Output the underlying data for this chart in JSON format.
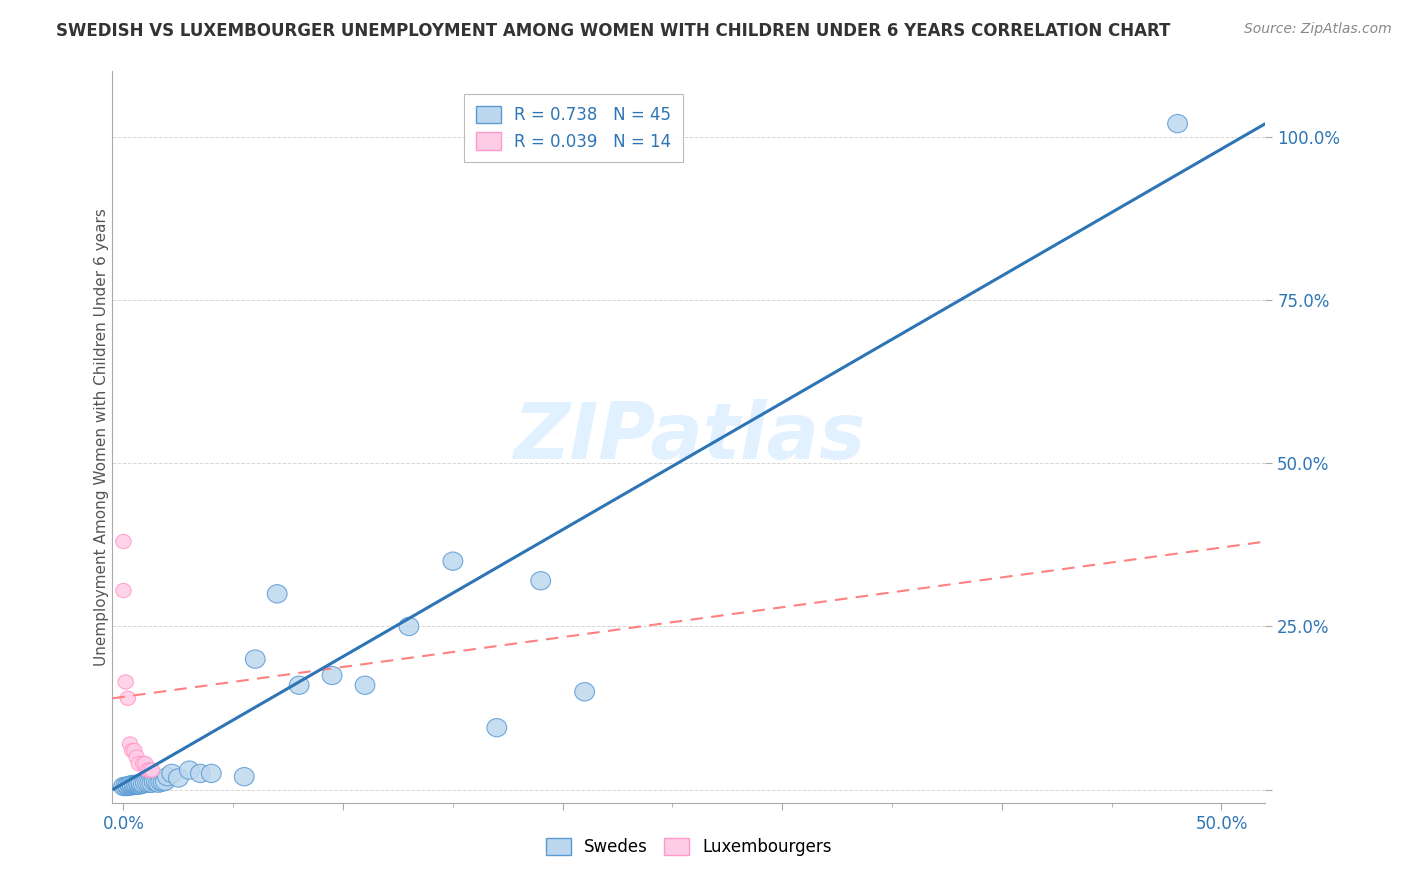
{
  "title": "SWEDISH VS LUXEMBOURGER UNEMPLOYMENT AMONG WOMEN WITH CHILDREN UNDER 6 YEARS CORRELATION CHART",
  "source": "Source: ZipAtlas.com",
  "ylabel": "Unemployment Among Women with Children Under 6 years",
  "xlabel": "",
  "xlim": [
    -0.005,
    0.52
  ],
  "ylim": [
    -0.02,
    1.1
  ],
  "legend_blue_r": "R = 0.738",
  "legend_blue_n": "N = 45",
  "legend_pink_r": "R = 0.039",
  "legend_pink_n": "N = 14",
  "blue_scatter_face": "#BDD7EE",
  "blue_scatter_edge": "#5B9BD5",
  "pink_scatter_face": "#FFCCE5",
  "pink_scatter_edge": "#FF99CC",
  "trend_blue_color": "#2E75B6",
  "trend_pink_color": "#FF8080",
  "watermark": "ZIPatlas",
  "swedes_x": [
    0.0,
    0.001,
    0.002,
    0.002,
    0.003,
    0.003,
    0.004,
    0.004,
    0.005,
    0.005,
    0.006,
    0.006,
    0.007,
    0.007,
    0.008,
    0.008,
    0.009,
    0.01,
    0.011,
    0.012,
    0.013,
    0.014,
    0.015,
    0.016,
    0.017,
    0.018,
    0.019,
    0.02,
    0.022,
    0.025,
    0.03,
    0.035,
    0.04,
    0.055,
    0.06,
    0.07,
    0.08,
    0.095,
    0.11,
    0.13,
    0.15,
    0.17,
    0.19,
    0.21,
    0.48
  ],
  "swedes_y": [
    0.005,
    0.005,
    0.005,
    0.006,
    0.006,
    0.007,
    0.006,
    0.008,
    0.007,
    0.008,
    0.007,
    0.008,
    0.007,
    0.009,
    0.008,
    0.01,
    0.009,
    0.01,
    0.01,
    0.01,
    0.01,
    0.012,
    0.012,
    0.01,
    0.012,
    0.012,
    0.013,
    0.02,
    0.025,
    0.018,
    0.03,
    0.025,
    0.025,
    0.02,
    0.2,
    0.3,
    0.16,
    0.175,
    0.16,
    0.25,
    0.35,
    0.095,
    0.32,
    0.15,
    1.02
  ],
  "lux_x": [
    0.0,
    0.0,
    0.001,
    0.002,
    0.003,
    0.004,
    0.005,
    0.006,
    0.007,
    0.009,
    0.01,
    0.011,
    0.012,
    0.013
  ],
  "lux_y": [
    0.38,
    0.305,
    0.165,
    0.14,
    0.07,
    0.06,
    0.06,
    0.05,
    0.04,
    0.04,
    0.04,
    0.03,
    0.03,
    0.03
  ],
  "trend_blue_x0": -0.005,
  "trend_blue_x1": 0.52,
  "trend_blue_y0": 0.0,
  "trend_blue_y1": 1.02,
  "trend_pink_x0": -0.005,
  "trend_pink_x1": 0.52,
  "trend_pink_y0": 0.14,
  "trend_pink_y1": 0.38
}
